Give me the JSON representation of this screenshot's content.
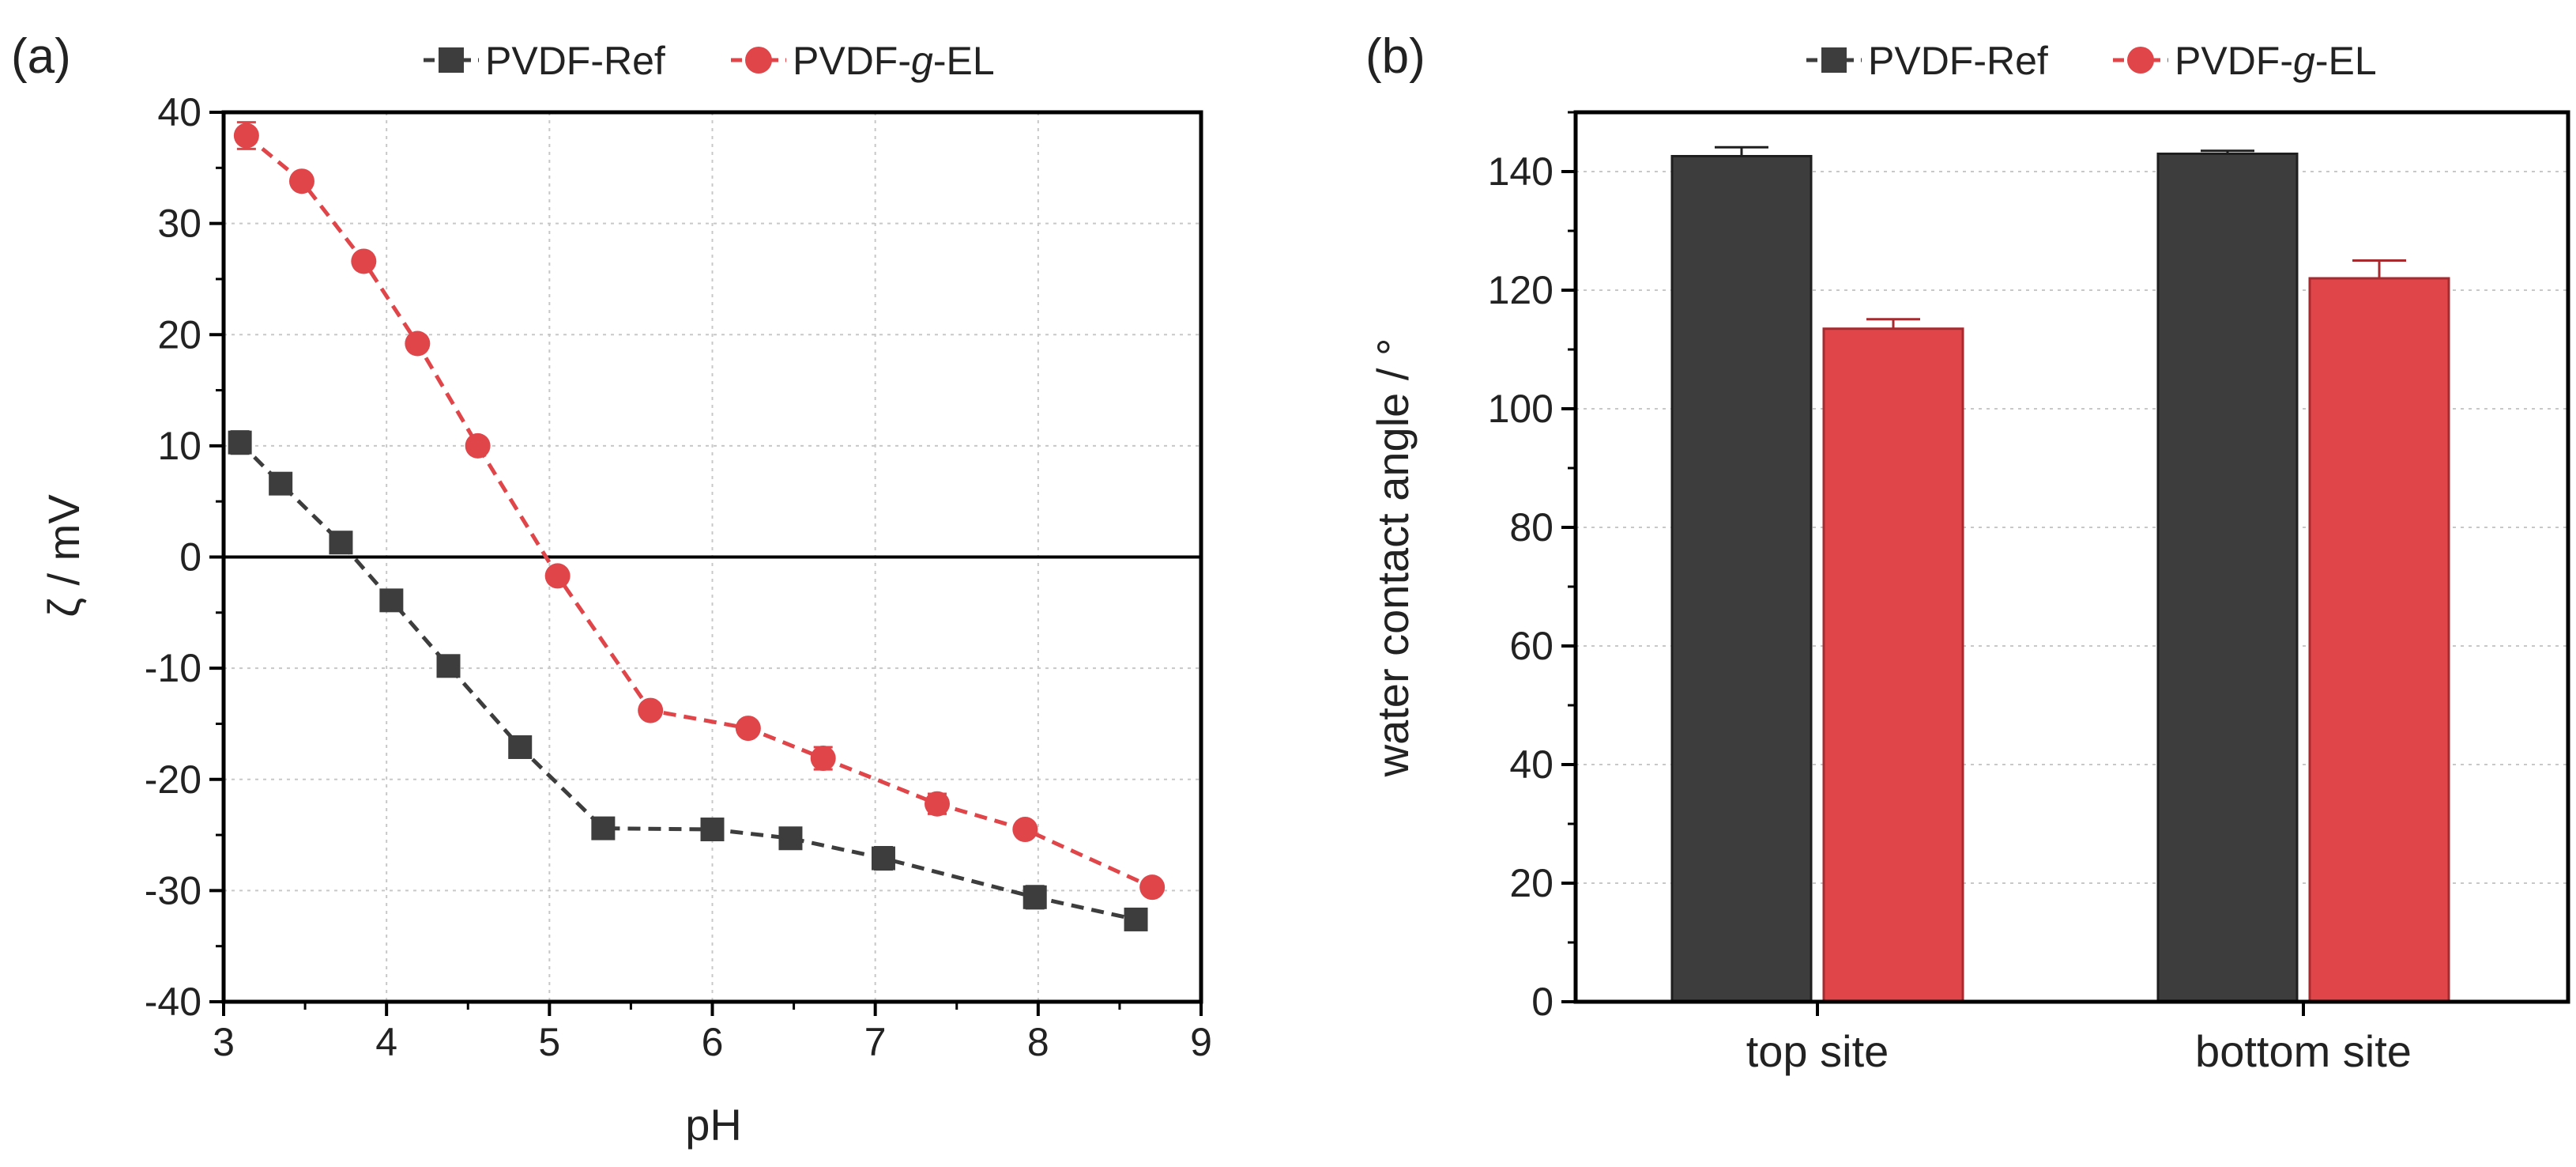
{
  "colors": {
    "ref": "#3d3d3d",
    "el": "#e0454a",
    "grid": "#c8c8c8",
    "axis": "#000000"
  },
  "legend": {
    "ref_prefix": "PVDF-Ref",
    "el_prefix": "PVDF-",
    "el_italic": "g",
    "el_suffix": "-EL"
  },
  "chart_data": [
    {
      "panel_label": "(a)",
      "type": "line",
      "title": "",
      "xlabel": "pH",
      "ylabel": "ζ / mV",
      "xlim": [
        3,
        9
      ],
      "ylim": [
        -40,
        40
      ],
      "xticks": [
        3,
        4,
        5,
        6,
        7,
        8,
        9
      ],
      "yticks": [
        -40,
        -30,
        -20,
        -10,
        0,
        10,
        20,
        30,
        40
      ],
      "grid": true,
      "zero_line": true,
      "legend_position": "top-center",
      "series": [
        {
          "name": "PVDF-Ref",
          "marker": "square",
          "x": [
            3.1,
            3.35,
            3.72,
            4.03,
            4.38,
            4.82,
            5.33,
            6.0,
            6.48,
            7.05,
            7.98,
            8.6
          ],
          "y": [
            10.3,
            6.6,
            1.3,
            -3.9,
            -9.8,
            -17.1,
            -24.4,
            -24.5,
            -25.3,
            -27.1,
            -30.6,
            -32.6
          ],
          "err": [
            1.0,
            0.6,
            0.4,
            0.4,
            0.4,
            0.4,
            0.4,
            0.4,
            0.4,
            1.0,
            1.0,
            0.5
          ]
        },
        {
          "name": "PVDF-g-EL",
          "marker": "circle",
          "x": [
            3.14,
            3.48,
            3.86,
            4.19,
            4.56,
            5.05,
            5.62,
            6.22,
            6.68,
            7.38,
            7.92,
            8.7
          ],
          "y": [
            37.9,
            33.8,
            26.6,
            19.2,
            10.0,
            -1.7,
            -13.8,
            -15.4,
            -18.1,
            -22.2,
            -24.5,
            -29.7
          ],
          "err": [
            1.2,
            0.5,
            0.5,
            0.4,
            0.4,
            0.4,
            0.4,
            0.4,
            1.0,
            0.9,
            0.4,
            0.4
          ]
        }
      ]
    },
    {
      "panel_label": "(b)",
      "type": "bar",
      "title": "",
      "xlabel": "",
      "ylabel": "water contact angle / °",
      "categories": [
        "top site",
        "bottom site"
      ],
      "ylim": [
        0,
        150
      ],
      "yticks": [
        0,
        20,
        40,
        60,
        80,
        100,
        120,
        140
      ],
      "grid": true,
      "legend_position": "top-center",
      "series": [
        {
          "name": "PVDF-Ref",
          "values": [
            142.6,
            143.0
          ],
          "err": [
            1.5,
            0.5
          ]
        },
        {
          "name": "PVDF-g-EL",
          "values": [
            113.5,
            122.0
          ],
          "err": [
            1.6,
            3.0
          ]
        }
      ]
    }
  ]
}
